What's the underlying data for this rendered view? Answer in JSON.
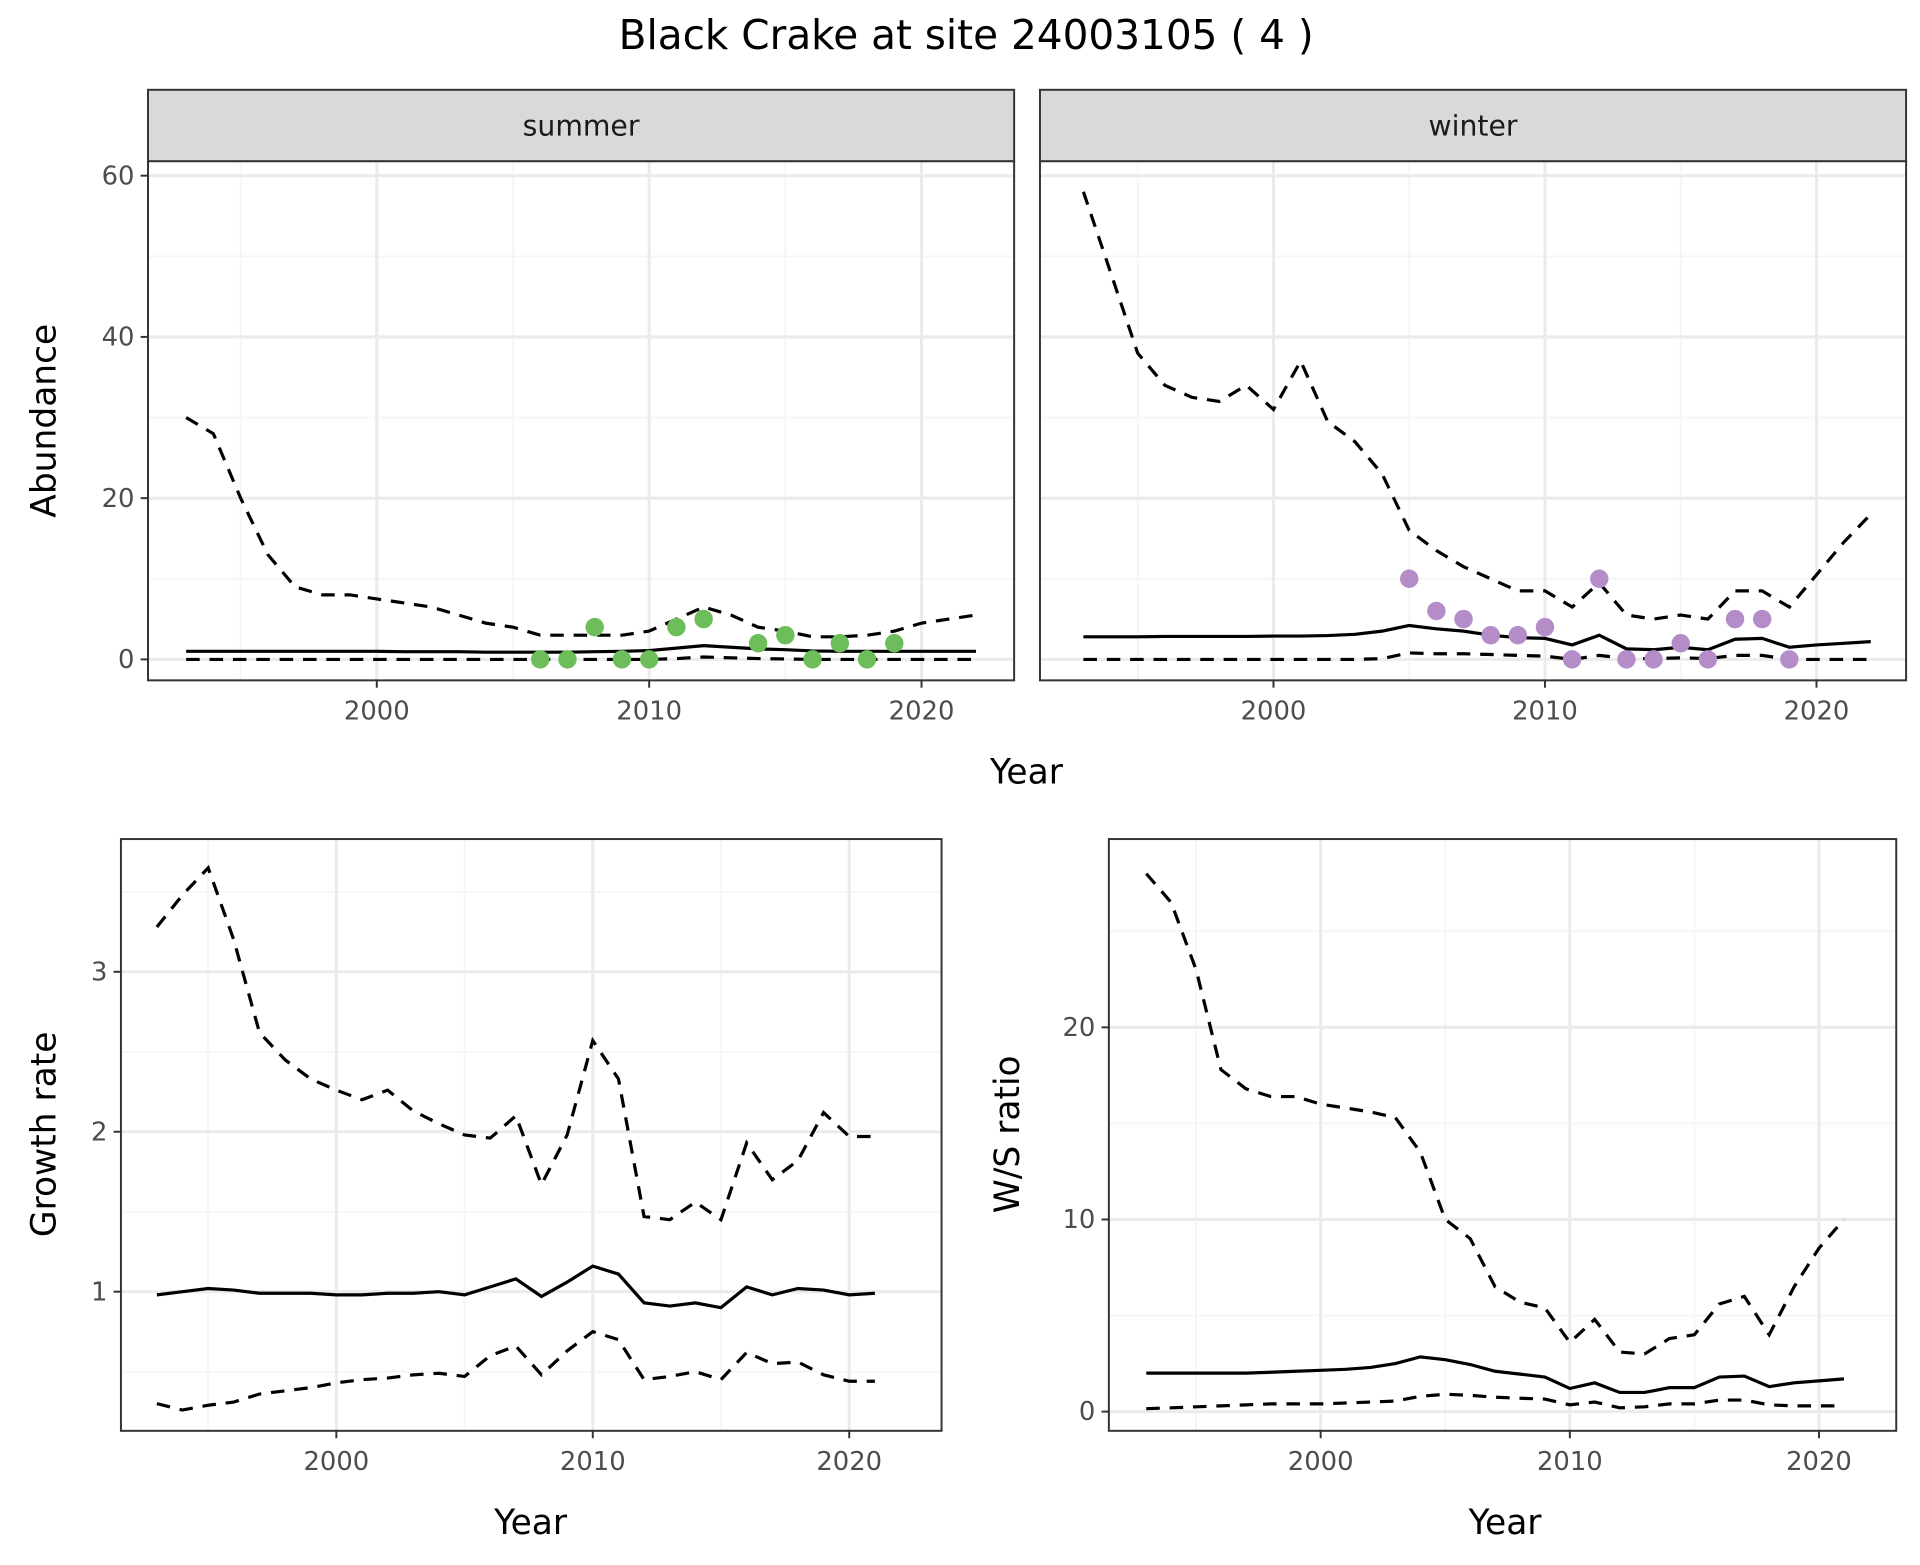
{
  "title": "Black Crake at site 24003105 ( 4 )",
  "colors": {
    "summer": "#6DBE5A",
    "winter": "#B48CC8",
    "line": "#000000",
    "grid_major": "#EBEBEB",
    "grid_minor": "#F5F5F5",
    "strip_fill": "#D9D9D9"
  },
  "chart_data": [
    {
      "type": "line",
      "id": "abundance",
      "ylabel": "Abundance",
      "xlabel": "Year",
      "xlim": [
        1991.6,
        2023.4
      ],
      "ylim": [
        -2.6,
        61.8
      ],
      "xticks": [
        2000,
        2010,
        2020
      ],
      "yticks": [
        0,
        20,
        40,
        60
      ],
      "facets": [
        {
          "strip": "summer",
          "x": [
            1993,
            1994,
            1995,
            1996,
            1997,
            1998,
            1999,
            2000,
            2001,
            2002,
            2003,
            2004,
            2005,
            2006,
            2007,
            2008,
            2009,
            2010,
            2011,
            2012,
            2013,
            2014,
            2015,
            2016,
            2017,
            2018,
            2019,
            2020,
            2021,
            2022
          ],
          "upper": [
            30,
            28,
            20,
            13,
            9,
            8,
            8,
            7.5,
            7,
            6.5,
            5.5,
            4.5,
            4,
            3,
            3,
            3,
            3,
            3.5,
            5,
            6.5,
            5.5,
            4,
            3.5,
            2.8,
            2.8,
            3,
            3.5,
            4.5,
            5,
            5.5
          ],
          "mean": [
            1,
            1,
            1,
            1,
            1,
            1,
            1,
            1,
            0.95,
            0.95,
            0.95,
            0.9,
            0.9,
            0.9,
            0.9,
            0.95,
            1,
            1.1,
            1.4,
            1.7,
            1.5,
            1.3,
            1.2,
            1.05,
            1,
            1,
            1,
            1,
            1,
            1
          ],
          "lower": [
            0,
            0,
            0,
            0,
            0,
            0,
            0,
            0,
            0,
            0,
            0,
            0,
            0,
            0,
            0,
            0,
            0,
            0,
            0.1,
            0.3,
            0.2,
            0.1,
            0.05,
            0,
            0,
            0,
            0,
            0,
            0,
            0
          ],
          "points": {
            "x": [
              2006,
              2007,
              2008,
              2009,
              2010,
              2011,
              2012,
              2014,
              2015,
              2016,
              2017,
              2018,
              2019
            ],
            "y": [
              0,
              0,
              4,
              0,
              0,
              4,
              5,
              2,
              3,
              0,
              2,
              0,
              2
            ]
          }
        },
        {
          "strip": "winter",
          "x": [
            1993,
            1994,
            1995,
            1996,
            1997,
            1998,
            1999,
            2000,
            2001,
            2002,
            2003,
            2004,
            2005,
            2006,
            2007,
            2008,
            2009,
            2010,
            2011,
            2012,
            2013,
            2014,
            2015,
            2016,
            2017,
            2018,
            2019,
            2020,
            2021,
            2022
          ],
          "upper": [
            58,
            48,
            38,
            34,
            32.5,
            32,
            34,
            31,
            37,
            29.5,
            27,
            23,
            16,
            13.5,
            11.5,
            10,
            8.5,
            8.5,
            6.5,
            9.5,
            5.5,
            5,
            5.5,
            5,
            8.5,
            8.5,
            6.5,
            10.5,
            14.5,
            18
          ],
          "mean": [
            2.8,
            2.8,
            2.8,
            2.85,
            2.85,
            2.85,
            2.85,
            2.9,
            2.9,
            2.95,
            3.1,
            3.5,
            4.2,
            3.8,
            3.5,
            3,
            2.7,
            2.6,
            1.8,
            3,
            1.3,
            1.2,
            1.5,
            1.2,
            2.5,
            2.6,
            1.5,
            1.8,
            2,
            2.2
          ],
          "lower": [
            0,
            0,
            0,
            0,
            0,
            0,
            0,
            0,
            0,
            0,
            0,
            0.1,
            0.8,
            0.7,
            0.7,
            0.6,
            0.5,
            0.4,
            0,
            0.5,
            0.1,
            0.1,
            0.2,
            0.1,
            0.5,
            0.5,
            0,
            0,
            0,
            0
          ],
          "points": {
            "x": [
              2005,
              2006,
              2007,
              2008,
              2009,
              2010,
              2011,
              2012,
              2013,
              2014,
              2015,
              2016,
              2017,
              2018,
              2019
            ],
            "y": [
              10,
              6,
              5,
              3,
              3,
              4,
              0,
              10,
              0,
              0,
              2,
              0,
              5,
              5,
              0
            ]
          }
        }
      ]
    },
    {
      "type": "line",
      "id": "growth",
      "ylabel": "Growth rate",
      "xlabel": "Year",
      "xlim": [
        1991.6,
        2023.6
      ],
      "ylim": [
        0.13,
        3.83
      ],
      "xticks": [
        2000,
        2010,
        2020
      ],
      "yticks": [
        1,
        2,
        3
      ],
      "x": [
        1993,
        1994,
        1995,
        1996,
        1997,
        1998,
        1999,
        2000,
        2001,
        2002,
        2003,
        2004,
        2005,
        2006,
        2007,
        2008,
        2009,
        2010,
        2011,
        2012,
        2013,
        2014,
        2015,
        2016,
        2017,
        2018,
        2019,
        2020,
        2021
      ],
      "upper": [
        3.28,
        3.48,
        3.65,
        3.2,
        2.62,
        2.45,
        2.33,
        2.26,
        2.2,
        2.26,
        2.13,
        2.05,
        1.98,
        1.96,
        2.1,
        1.67,
        1.98,
        2.57,
        2.33,
        1.47,
        1.45,
        1.56,
        1.45,
        1.93,
        1.7,
        1.82,
        2.12,
        1.97,
        1.97
      ],
      "mean": [
        0.98,
        1.0,
        1.02,
        1.01,
        0.99,
        0.99,
        0.99,
        0.98,
        0.98,
        0.99,
        0.99,
        1.0,
        0.98,
        1.03,
        1.08,
        0.97,
        1.06,
        1.16,
        1.11,
        0.93,
        0.91,
        0.93,
        0.9,
        1.03,
        0.98,
        1.02,
        1.01,
        0.98,
        0.99
      ],
      "lower": [
        0.3,
        0.26,
        0.29,
        0.31,
        0.36,
        0.38,
        0.4,
        0.43,
        0.45,
        0.46,
        0.48,
        0.49,
        0.47,
        0.6,
        0.66,
        0.48,
        0.63,
        0.75,
        0.7,
        0.45,
        0.47,
        0.5,
        0.45,
        0.62,
        0.55,
        0.56,
        0.48,
        0.44,
        0.44
      ]
    },
    {
      "type": "line",
      "id": "ws_ratio",
      "ylabel": "W/S ratio",
      "xlabel": "Year",
      "xlim": [
        1991.5,
        2023.1
      ],
      "ylim": [
        -1.0,
        29.8
      ],
      "xticks": [
        2000,
        2010,
        2020
      ],
      "yticks": [
        0,
        10,
        20
      ],
      "x": [
        1993,
        1994,
        1995,
        1996,
        1997,
        1998,
        1999,
        2000,
        2001,
        2002,
        2003,
        2004,
        2005,
        2006,
        2007,
        2008,
        2009,
        2010,
        2011,
        2012,
        2013,
        2014,
        2015,
        2016,
        2017,
        2018,
        2019,
        2020,
        2021
      ],
      "upper": [
        28,
        26.5,
        23,
        17.8,
        16.8,
        16.4,
        16.4,
        16,
        15.8,
        15.6,
        15.3,
        13.5,
        10,
        9,
        6.5,
        5.7,
        5.4,
        3.6,
        4.8,
        3.1,
        3,
        3.8,
        4,
        5.6,
        6,
        4,
        6.5,
        8.5,
        10
      ],
      "mean": [
        2,
        2,
        2,
        2,
        2,
        2.05,
        2.1,
        2.15,
        2.2,
        2.3,
        2.5,
        2.85,
        2.7,
        2.45,
        2.1,
        1.95,
        1.8,
        1.2,
        1.5,
        1.0,
        1.0,
        1.25,
        1.25,
        1.8,
        1.85,
        1.3,
        1.5,
        1.6,
        1.7
      ],
      "lower": [
        0.15,
        0.2,
        0.25,
        0.3,
        0.35,
        0.4,
        0.4,
        0.4,
        0.45,
        0.5,
        0.55,
        0.8,
        0.9,
        0.85,
        0.75,
        0.7,
        0.65,
        0.35,
        0.5,
        0.2,
        0.25,
        0.4,
        0.4,
        0.6,
        0.6,
        0.35,
        0.3,
        0.3,
        0.3
      ]
    }
  ]
}
